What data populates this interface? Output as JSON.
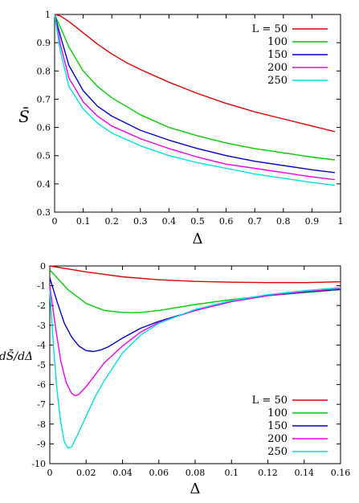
{
  "chart_data": [
    {
      "type": "line",
      "xlabel": "Δ",
      "ylabel": "S̄",
      "xlim": [
        0,
        1
      ],
      "ylim": [
        0.3,
        1
      ],
      "xticks": [
        "0",
        "0.1",
        "0.2",
        "0.3",
        "0.4",
        "0.5",
        "0.6",
        "0.7",
        "0.8",
        "0.9",
        "1"
      ],
      "yticks": [
        "0.3",
        "0.4",
        "0.5",
        "0.6",
        "0.7",
        "0.8",
        "0.9",
        "1"
      ],
      "legend_position": "top-right",
      "series": [
        {
          "name": "L = 50",
          "color": "#e00000",
          "x": [
            0,
            0.02,
            0.05,
            0.1,
            0.15,
            0.2,
            0.25,
            0.3,
            0.4,
            0.5,
            0.6,
            0.7,
            0.8,
            0.9,
            0.98
          ],
          "y": [
            1.0,
            0.995,
            0.975,
            0.935,
            0.895,
            0.86,
            0.83,
            0.805,
            0.76,
            0.72,
            0.685,
            0.655,
            0.63,
            0.605,
            0.585
          ]
        },
        {
          "name": "100",
          "color": "#00cc00",
          "x": [
            0,
            0.02,
            0.05,
            0.1,
            0.15,
            0.2,
            0.3,
            0.4,
            0.5,
            0.6,
            0.7,
            0.8,
            0.9,
            0.98
          ],
          "y": [
            1.0,
            0.955,
            0.885,
            0.8,
            0.745,
            0.705,
            0.645,
            0.6,
            0.57,
            0.545,
            0.525,
            0.51,
            0.495,
            0.485
          ]
        },
        {
          "name": "150",
          "color": "#0000cc",
          "x": [
            0,
            0.02,
            0.05,
            0.1,
            0.15,
            0.2,
            0.3,
            0.4,
            0.5,
            0.6,
            0.7,
            0.8,
            0.9,
            0.98
          ],
          "y": [
            1.0,
            0.925,
            0.82,
            0.73,
            0.675,
            0.64,
            0.59,
            0.555,
            0.525,
            0.5,
            0.48,
            0.465,
            0.45,
            0.44
          ]
        },
        {
          "name": "200",
          "color": "#ee00ee",
          "x": [
            0,
            0.02,
            0.05,
            0.1,
            0.15,
            0.2,
            0.3,
            0.4,
            0.5,
            0.6,
            0.7,
            0.8,
            0.9,
            0.98
          ],
          "y": [
            1.0,
            0.895,
            0.775,
            0.69,
            0.64,
            0.605,
            0.56,
            0.525,
            0.495,
            0.47,
            0.455,
            0.44,
            0.425,
            0.415
          ]
        },
        {
          "name": "250",
          "color": "#00dddd",
          "x": [
            0,
            0.02,
            0.05,
            0.1,
            0.15,
            0.2,
            0.3,
            0.4,
            0.5,
            0.6,
            0.7,
            0.8,
            0.9,
            0.98
          ],
          "y": [
            1.0,
            0.87,
            0.745,
            0.665,
            0.615,
            0.58,
            0.535,
            0.5,
            0.475,
            0.455,
            0.435,
            0.42,
            0.405,
            0.395
          ]
        }
      ]
    },
    {
      "type": "line",
      "xlabel": "Δ",
      "ylabel": "dS̄/dΔ",
      "xlim": [
        0,
        0.16
      ],
      "ylim": [
        -10,
        0
      ],
      "xticks": [
        "0",
        "0.02",
        "0.04",
        "0.06",
        "0.08",
        "0.1",
        "0.12",
        "0.14",
        "0.16"
      ],
      "yticks": [
        "0",
        "-1",
        "-2",
        "-3",
        "-4",
        "-5",
        "-6",
        "-7",
        "-8",
        "-9",
        "-10"
      ],
      "legend_position": "bottom-right",
      "series": [
        {
          "name": "L = 50",
          "color": "#e00000",
          "x": [
            0,
            0.01,
            0.02,
            0.04,
            0.06,
            0.08,
            0.1,
            0.12,
            0.14,
            0.16
          ],
          "y": [
            0.0,
            -0.15,
            -0.3,
            -0.55,
            -0.7,
            -0.78,
            -0.82,
            -0.84,
            -0.84,
            -0.8
          ]
        },
        {
          "name": "100",
          "color": "#00cc00",
          "x": [
            0,
            0.005,
            0.01,
            0.02,
            0.03,
            0.04,
            0.045,
            0.05,
            0.06,
            0.08,
            0.1,
            0.12,
            0.14,
            0.16
          ],
          "y": [
            -0.2,
            -0.7,
            -1.2,
            -1.9,
            -2.25,
            -2.35,
            -2.36,
            -2.35,
            -2.25,
            -1.95,
            -1.7,
            -1.5,
            -1.35,
            -1.2
          ]
        },
        {
          "name": "150",
          "color": "#0000cc",
          "x": [
            0,
            0.004,
            0.008,
            0.012,
            0.016,
            0.02,
            0.024,
            0.028,
            0.032,
            0.04,
            0.05,
            0.06,
            0.08,
            0.1,
            0.12,
            0.14,
            0.16
          ],
          "y": [
            -0.6,
            -1.8,
            -2.9,
            -3.6,
            -4.05,
            -4.28,
            -4.33,
            -4.25,
            -4.1,
            -3.65,
            -3.15,
            -2.8,
            -2.25,
            -1.8,
            -1.5,
            -1.32,
            -1.18
          ]
        },
        {
          "name": "200",
          "color": "#ee00ee",
          "x": [
            0,
            0.003,
            0.006,
            0.009,
            0.012,
            0.014,
            0.016,
            0.02,
            0.025,
            0.03,
            0.04,
            0.05,
            0.06,
            0.08,
            0.1,
            0.12,
            0.14,
            0.16
          ],
          "y": [
            -1.0,
            -3.0,
            -4.8,
            -5.9,
            -6.45,
            -6.56,
            -6.5,
            -6.1,
            -5.5,
            -4.9,
            -4.05,
            -3.35,
            -2.85,
            -2.25,
            -1.8,
            -1.5,
            -1.3,
            -1.15
          ]
        },
        {
          "name": "250",
          "color": "#00dddd",
          "x": [
            0,
            0.002,
            0.004,
            0.006,
            0.008,
            0.01,
            0.012,
            0.015,
            0.02,
            0.025,
            0.03,
            0.04,
            0.05,
            0.06,
            0.08,
            0.1,
            0.12,
            0.14,
            0.16
          ],
          "y": [
            -1.2,
            -4.0,
            -6.3,
            -7.9,
            -8.9,
            -9.22,
            -9.15,
            -8.6,
            -7.6,
            -6.6,
            -5.8,
            -4.4,
            -3.5,
            -2.9,
            -2.2,
            -1.75,
            -1.45,
            -1.25,
            -1.1
          ]
        }
      ]
    }
  ]
}
